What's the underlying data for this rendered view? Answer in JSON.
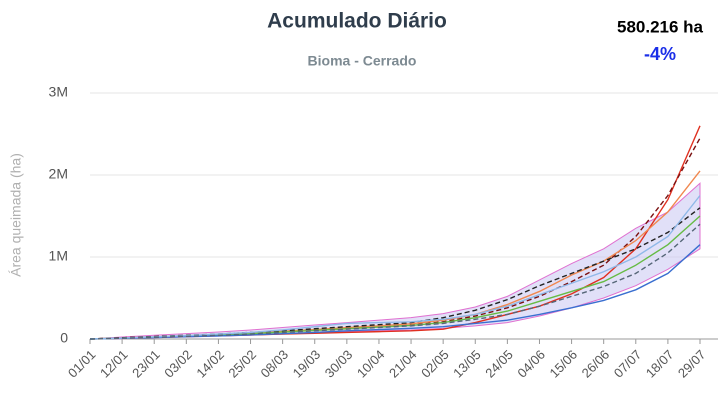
{
  "chart_data": {
    "type": "line",
    "title": "Acumulado Diário",
    "subtitle": "Bioma - Cerrado",
    "annotations": [
      "580.216 ha",
      "-4%"
    ],
    "y_label": "Área queimada (ha)",
    "categories": [
      "01/01",
      "12/01",
      "23/01",
      "03/02",
      "14/02",
      "25/02",
      "08/03",
      "19/03",
      "30/03",
      "10/04",
      "21/04",
      "02/05",
      "13/05",
      "24/05",
      "04/06",
      "15/06",
      "26/06",
      "07/07",
      "18/07",
      "29/07"
    ],
    "ylim": [
      0,
      3000000
    ],
    "yticks": [
      {
        "value": 0,
        "label": "0"
      },
      {
        "value": 1000000,
        "label": "1M"
      },
      {
        "value": 2000000,
        "label": "2M"
      },
      {
        "value": 3000000,
        "label": "3M"
      }
    ],
    "grid": true,
    "band": {
      "color": "#c9c6f2",
      "lower": [
        0,
        5000,
        15000,
        25000,
        35000,
        45000,
        60000,
        75000,
        90000,
        100000,
        110000,
        130000,
        160000,
        200000,
        280000,
        380000,
        500000,
        650000,
        850000,
        1100000
      ],
      "upper": [
        0,
        25000,
        45000,
        65000,
        85000,
        110000,
        140000,
        170000,
        200000,
        230000,
        260000,
        310000,
        390000,
        520000,
        720000,
        920000,
        1100000,
        1350000,
        1550000,
        1900000
      ]
    },
    "series": [
      {
        "color": "#e03020",
        "dash": false,
        "values": [
          0,
          10000,
          20000,
          30000,
          40000,
          50000,
          60000,
          70000,
          80000,
          90000,
          100000,
          120000,
          200000,
          300000,
          400000,
          550000,
          750000,
          1100000,
          1700000,
          2600000
        ]
      },
      {
        "color": "#7a1010",
        "dash": true,
        "values": [
          0,
          15000,
          30000,
          40000,
          55000,
          70000,
          90000,
          110000,
          130000,
          150000,
          170000,
          210000,
          280000,
          380000,
          520000,
          700000,
          900000,
          1250000,
          1750000,
          2450000
        ]
      },
      {
        "color": "#f08850",
        "dash": false,
        "values": [
          0,
          12000,
          25000,
          40000,
          55000,
          75000,
          95000,
          115000,
          140000,
          160000,
          185000,
          230000,
          300000,
          420000,
          580000,
          780000,
          950000,
          1200000,
          1550000,
          2050000
        ]
      },
      {
        "color": "#222222",
        "dash": true,
        "values": [
          0,
          15000,
          30000,
          45000,
          60000,
          80000,
          100000,
          125000,
          150000,
          175000,
          200000,
          260000,
          350000,
          480000,
          650000,
          800000,
          950000,
          1100000,
          1300000,
          1600000
        ]
      },
      {
        "color": "#66bb44",
        "dash": false,
        "values": [
          0,
          10000,
          22000,
          35000,
          50000,
          65000,
          85000,
          105000,
          125000,
          145000,
          165000,
          200000,
          260000,
          340000,
          460000,
          580000,
          700000,
          900000,
          1150000,
          1500000
        ]
      },
      {
        "color": "#3a6fd0",
        "dash": false,
        "values": [
          0,
          8000,
          18000,
          28000,
          38000,
          50000,
          65000,
          80000,
          100000,
          115000,
          130000,
          150000,
          190000,
          230000,
          300000,
          380000,
          470000,
          600000,
          800000,
          1150000
        ]
      },
      {
        "color": "#8fb8e8",
        "dash": false,
        "values": [
          0,
          12000,
          25000,
          40000,
          60000,
          80000,
          110000,
          150000,
          190000,
          200000,
          210000,
          240000,
          300000,
          400000,
          540000,
          680000,
          820000,
          1000000,
          1250000,
          1750000
        ]
      },
      {
        "color": "#556677",
        "dash": true,
        "values": [
          0,
          10000,
          20000,
          32000,
          45000,
          60000,
          80000,
          100000,
          120000,
          140000,
          160000,
          190000,
          240000,
          300000,
          400000,
          520000,
          640000,
          800000,
          1050000,
          1400000
        ]
      }
    ]
  }
}
